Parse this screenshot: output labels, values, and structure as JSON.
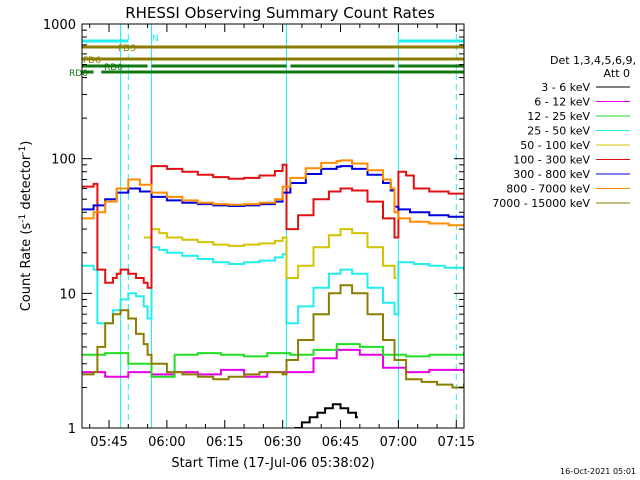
{
  "chart_data": {
    "type": "line",
    "title": "RHESSI Observing Summary Count Rates",
    "xlabel": "Start Time (17-Jul-06 05:38:02)",
    "ylabel": "Count Rate (s⁻¹ detector⁻¹)",
    "ylabel_parts": {
      "pre": "Count Rate (s",
      "e1": "-1",
      "mid": " detector",
      "e2": "-1",
      "post": ")"
    },
    "yscale": "log",
    "ylim": [
      1,
      1000
    ],
    "xlim_min": [
      0,
      99
    ],
    "x_ticks": [
      {
        "t": 7,
        "label": "05:45"
      },
      {
        "t": 22,
        "label": "06:00"
      },
      {
        "t": 37,
        "label": "06:15"
      },
      {
        "t": 52,
        "label": "06:30"
      },
      {
        "t": 67,
        "label": "06:45"
      },
      {
        "t": 82,
        "label": "07:00"
      },
      {
        "t": 97,
        "label": "07:15"
      }
    ],
    "y_ticks": [
      {
        "v": 1,
        "label": "1"
      },
      {
        "v": 10,
        "label": "10"
      },
      {
        "v": 100,
        "label": "100"
      },
      {
        "v": 1000,
        "label": "1000"
      }
    ],
    "legend_header": [
      "Det 1,3,4,5,6,9,",
      "Att 0"
    ],
    "legend_position": "right",
    "series": [
      {
        "name": "3 - 6 keV",
        "color": "#000000",
        "x": [
          55,
          57,
          59,
          61,
          63,
          65,
          67,
          69,
          71
        ],
        "values": [
          1,
          1.1,
          1.2,
          1.3,
          1.4,
          1.5,
          1.4,
          1.3,
          1.2
        ]
      },
      {
        "name": "6 - 12 keV",
        "color": "#e600e6",
        "x": [
          0,
          6,
          12,
          18,
          24,
          30,
          36,
          42,
          48,
          54,
          60,
          66,
          72,
          78,
          84,
          90,
          99
        ],
        "values": [
          2.6,
          2.4,
          2.6,
          2.5,
          2.6,
          2.5,
          2.7,
          2.4,
          2.6,
          2.6,
          3.3,
          3.8,
          3.5,
          2.8,
          2.6,
          2.7,
          2.6
        ]
      },
      {
        "name": "12 - 25 keV",
        "color": "#22dd22",
        "x": [
          0,
          6,
          12,
          18,
          24,
          30,
          36,
          42,
          48,
          54,
          60,
          66,
          72,
          78,
          84,
          90,
          99
        ],
        "values": [
          3.5,
          3.6,
          3.0,
          2.4,
          3.5,
          3.6,
          3.5,
          3.4,
          3.6,
          3.5,
          3.8,
          4.2,
          4.0,
          3.5,
          3.4,
          3.5,
          3.6
        ]
      },
      {
        "name": "25 - 50 keV",
        "color": "#22eeee",
        "x": [
          0,
          3,
          4,
          8,
          10,
          12,
          14,
          16,
          17,
          18,
          20,
          22,
          26,
          30,
          34,
          38,
          42,
          46,
          50,
          52,
          53,
          56,
          60,
          64,
          67,
          70,
          74,
          78,
          81,
          82,
          86,
          90,
          94,
          99
        ],
        "values": [
          16,
          15,
          6,
          7.5,
          9,
          10,
          9.5,
          8,
          6.5,
          22,
          21,
          20,
          19,
          18,
          17,
          16.5,
          17,
          17.5,
          18.5,
          19.5,
          6,
          8,
          11,
          14,
          15,
          14,
          11,
          8.5,
          7,
          17,
          16.5,
          16,
          15.5,
          15
        ]
      },
      {
        "name": "50 - 100 keV",
        "color": "#d4c400",
        "x": [
          16,
          18,
          20,
          22,
          26,
          30,
          34,
          38,
          42,
          46,
          50,
          52,
          53,
          56,
          60,
          64,
          67,
          70,
          74,
          78,
          81
        ],
        "values": [
          26,
          30,
          28,
          26,
          25,
          24,
          23,
          22.5,
          23,
          23.5,
          24.5,
          26,
          13,
          16,
          22,
          27,
          30,
          28,
          22,
          16,
          13
        ]
      },
      {
        "name": "100 - 300 keV",
        "color": "#e01010",
        "x": [
          0,
          3,
          4,
          6,
          8,
          9,
          10,
          12,
          14,
          16,
          17,
          18,
          22,
          26,
          30,
          34,
          38,
          42,
          46,
          50,
          52,
          53,
          56,
          60,
          64,
          67,
          70,
          74,
          78,
          81,
          82,
          84,
          86,
          90,
          95,
          99
        ],
        "values": [
          62,
          65,
          15,
          12,
          13,
          14,
          15,
          14,
          13,
          12,
          11,
          88,
          84,
          80,
          76,
          73,
          71,
          72,
          75,
          81,
          90,
          30,
          38,
          50,
          57,
          60,
          58,
          48,
          36,
          26,
          80,
          75,
          60,
          57,
          55,
          55
        ]
      },
      {
        "name": "300 - 800 keV",
        "color": "#0000dd",
        "x": [
          0,
          3,
          6,
          9,
          12,
          15,
          18,
          22,
          26,
          30,
          34,
          38,
          42,
          46,
          50,
          52,
          54,
          58,
          62,
          66,
          67,
          70,
          74,
          78,
          80,
          81,
          82,
          85,
          90,
          95,
          99
        ],
        "values": [
          42,
          45,
          50,
          56,
          60,
          57,
          52,
          49,
          47,
          46,
          45,
          44.5,
          45,
          46,
          48,
          56,
          66,
          77,
          84,
          87,
          88,
          84,
          76,
          66,
          58,
          44,
          42,
          40,
          38,
          37,
          37
        ]
      },
      {
        "name": "800 - 7000 keV",
        "color": "#ff8c00",
        "x": [
          0,
          3,
          6,
          9,
          12,
          15,
          18,
          22,
          26,
          30,
          34,
          38,
          42,
          46,
          50,
          52,
          54,
          58,
          62,
          66,
          67,
          70,
          74,
          78,
          80,
          81,
          82,
          85,
          90,
          95,
          99
        ],
        "values": [
          36,
          40,
          48,
          60,
          70,
          64,
          56,
          52,
          49,
          47,
          46,
          45.5,
          46,
          47,
          50,
          62,
          72,
          85,
          93,
          96,
          97,
          92,
          82,
          70,
          60,
          40,
          36,
          34,
          33,
          32,
          32
        ]
      },
      {
        "name": "7000 - 15000 keV",
        "color": "#8b7d00",
        "x": [
          0,
          3,
          4,
          6,
          8,
          10,
          12,
          14,
          16,
          17,
          18,
          22,
          26,
          30,
          34,
          38,
          42,
          46,
          50,
          52,
          53,
          56,
          60,
          64,
          67,
          70,
          74,
          78,
          81,
          84,
          88,
          92,
          96,
          99
        ],
        "values": [
          2.5,
          2.6,
          4,
          6,
          7,
          7.5,
          6.5,
          5,
          4.2,
          3.5,
          3.0,
          2.6,
          2.5,
          2.4,
          2.3,
          2.4,
          2.5,
          2.6,
          2.6,
          2.5,
          3.2,
          4.5,
          7,
          10,
          11.5,
          10,
          7,
          4.5,
          3.2,
          2.3,
          2.2,
          2.1,
          2.0,
          2.1
        ]
      }
    ],
    "flag_bars": [
      {
        "label": "N",
        "color": "#22eeee",
        "segments": [
          [
            0,
            12
          ],
          [
            82,
            99
          ]
        ]
      },
      {
        "label": "FDS",
        "color": "#8b7d00",
        "segments": [
          [
            0,
            99
          ]
        ]
      },
      {
        "label": "FD6",
        "color": "#8b7d00",
        "segments": [
          [
            0,
            99
          ]
        ]
      },
      {
        "label": "RD0",
        "color": "#117711",
        "segments": [
          [
            0,
            17
          ],
          [
            18,
            53
          ],
          [
            54,
            81
          ],
          [
            82,
            99
          ]
        ]
      },
      {
        "label": "RD6",
        "color": "#117711",
        "segments": [
          [
            0,
            3
          ],
          [
            5,
            99
          ]
        ]
      }
    ],
    "vlines": [
      {
        "t": 0,
        "style": "solid"
      },
      {
        "t": 10,
        "style": "solid"
      },
      {
        "t": 12,
        "style": "dashed"
      },
      {
        "t": 18,
        "style": "solid"
      },
      {
        "t": 53,
        "style": "solid"
      },
      {
        "t": 82,
        "style": "solid"
      },
      {
        "t": 97,
        "style": "dashed"
      }
    ]
  },
  "footer_timestamp": "16-Oct-2021 05:01"
}
